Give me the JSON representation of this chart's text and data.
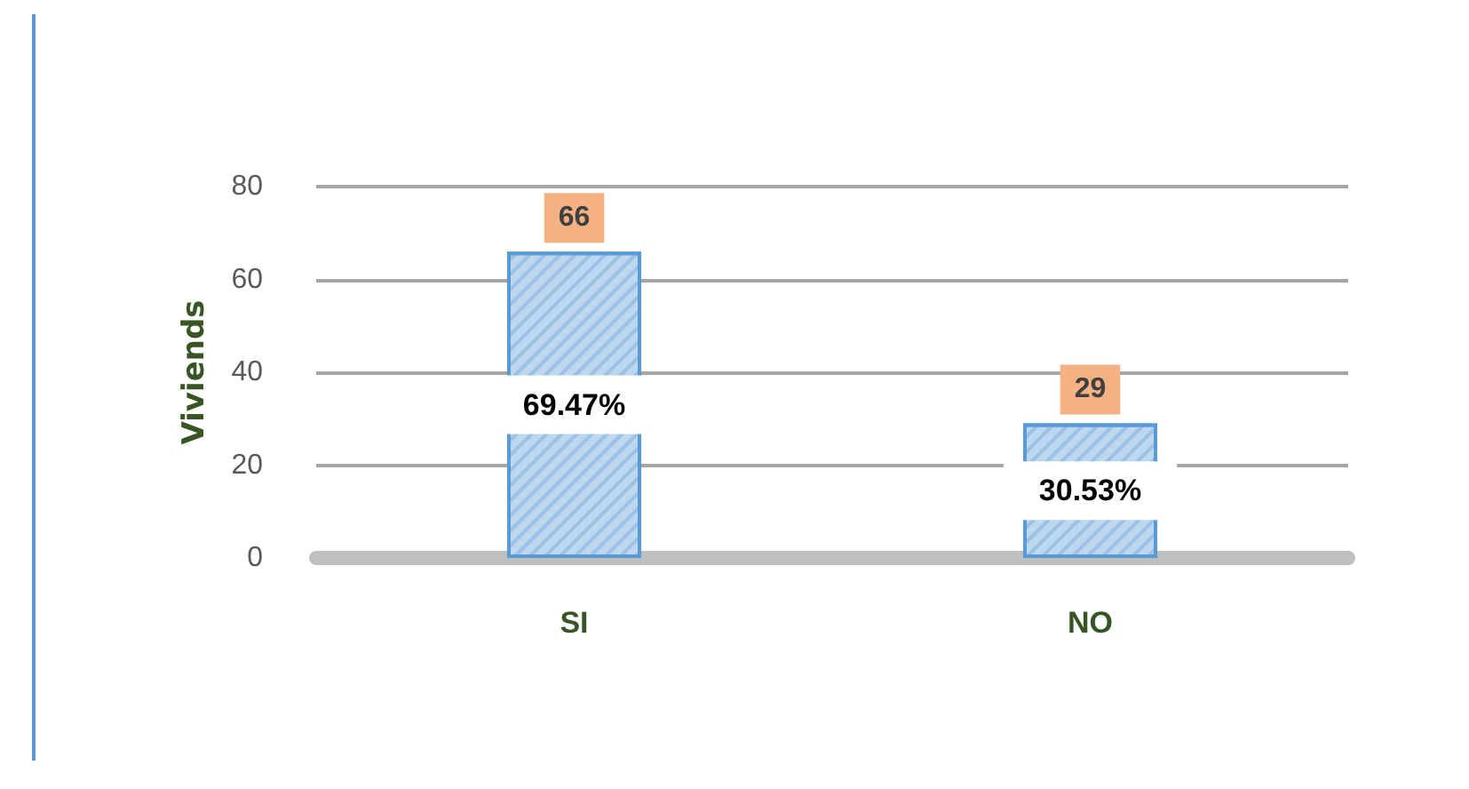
{
  "chart_data": {
    "type": "bar",
    "ylabel": "Viviends",
    "categories": [
      "SI",
      "NO"
    ],
    "values": [
      66,
      29
    ],
    "color": "#bdd7ee",
    "ylim": [
      0,
      80
    ],
    "yticks": [
      0,
      20,
      40,
      60,
      80
    ],
    "grid": "y",
    "data_labels": true,
    "annotations": [
      "69.47%",
      "30.53%"
    ]
  }
}
